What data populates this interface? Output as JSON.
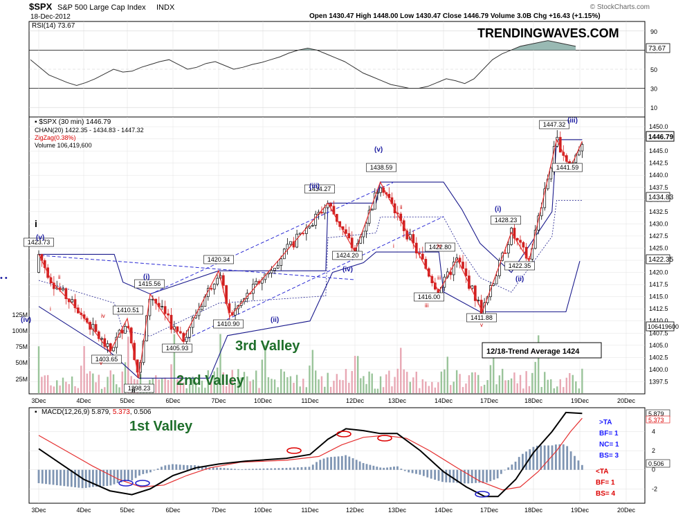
{
  "header": {
    "symbol": "$SPX",
    "name": "S&P 500 Large Cap Index",
    "exchange": "INDX",
    "date": "18-Dec-2012",
    "ohlc": "Open 1430.47   High 1448.00   Low 1430.47   Close 1446.79   Volume 3.0B   Chg +16.43 (+1.15%)",
    "copyright": "© StockCharts.com",
    "brand": "TRENDINGWAVES.COM"
  },
  "rsi": {
    "label": "RSI(14) 73.67",
    "current_value_label": "73.67",
    "ticks": [
      90,
      70,
      50,
      30,
      10
    ],
    "overbought": 70,
    "oversold": 30,
    "range": [
      0,
      100
    ],
    "values": [
      60,
      52,
      44,
      40,
      36,
      33,
      36,
      40,
      45,
      50,
      47,
      48,
      52,
      55,
      58,
      60,
      55,
      50,
      52,
      56,
      58,
      54,
      50,
      52,
      55,
      57,
      60,
      63,
      67,
      70,
      72,
      70,
      66,
      62,
      58,
      52,
      46,
      42,
      38,
      34,
      32,
      30,
      30,
      32,
      36,
      40,
      38,
      35,
      40,
      50,
      60,
      66,
      70,
      74,
      76,
      78,
      80,
      78,
      76,
      74
    ]
  },
  "price": {
    "label_main": "$SPX (30 min) 1446.79",
    "label_chan": "CHAN(20) 1422.35 - 1434.83 - 1447.32",
    "label_zigzag": "ZigZag(0.38%)",
    "label_volume": "Volume 106,419,600",
    "range": [
      1395,
      1452
    ],
    "ticks": [
      1450.0,
      1447.5,
      1445.0,
      1442.5,
      1440.0,
      1437.5,
      1435.0,
      1432.5,
      1430.0,
      1427.5,
      1425.0,
      1422.5,
      1420.0,
      1417.5,
      1415.0,
      1412.5,
      1410.0,
      1407.5,
      1405.0,
      1402.5,
      1400.0,
      1397.5
    ],
    "last_price_label": "1446.79",
    "channel_upper_label": "1434.83",
    "channel_lower_label": "1422.35",
    "volume_label": "106419600",
    "volume_ticks": [
      "125M",
      "100M",
      "75M",
      "50M",
      "25M"
    ],
    "zigzag_labels": [
      "1423.73",
      "1410.51",
      "1415.56",
      "1403.65",
      "1398.23",
      "1405.93",
      "1420.34",
      "1410.90",
      "1434.27",
      "1424.20",
      "1438.59",
      "1416.00",
      "1422.80",
      "1411.88",
      "1428.23",
      "1422.35",
      "1447.32",
      "1441.59"
    ],
    "x_labels": [
      "3Dec",
      "4Dec",
      "5Dec",
      "6Dec",
      "7Dec",
      "10Dec",
      "11Dec",
      "12Dec",
      "13Dec",
      "14Dec",
      "17Dec",
      "18Dec",
      "19Dec",
      "20Dec"
    ]
  },
  "annotations": {
    "wave_i_big": "i",
    "wave_v1": "(v)",
    "wave_i1": "(i)",
    "wave_i2": "(i)",
    "wave_iii1": "(iii)",
    "wave_iii2": "(iii)",
    "wave_v2": "(v)",
    "wave_iv1": "(iv)",
    "wave_iv2": "(iv)",
    "wave_ii1": "(ii)",
    "wave_ii2": "(ii)",
    "wave_ii_under": "ii",
    "valley3": "3rd Valley",
    "valley2": "2nd Valley",
    "valley1": "1st Valley",
    "trend_box": "12/18-Trend Average 1424",
    "small_marks": [
      "ii",
      "i",
      "iv",
      "v",
      "iii",
      "ii",
      "i",
      "iii",
      "iv",
      "v"
    ]
  },
  "macd": {
    "label_prefix": "MACD(12,26,9) ",
    "label_macd": "5.879",
    "label_sep": ", ",
    "label_signal": "5.373",
    "label_hist": ", 0.506",
    "macd_value_label": "5.879",
    "signal_value_label": "5.373",
    "hist_value_label": "0.506",
    "ticks": [
      4,
      2,
      0,
      -2
    ],
    "range": [
      -3.5,
      6.5
    ],
    "ta_up": ">TA",
    "ta_up_lines": [
      "BF= 1",
      "NC= 1",
      "BS= 3"
    ],
    "ta_down": "<TA",
    "ta_down_lines": [
      "BF= 1",
      "BS= 4"
    ],
    "x_labels": [
      "3Dec",
      "4Dec",
      "5Dec",
      "6Dec",
      "7Dec",
      "10Dec",
      "11Dec",
      "12Dec",
      "13Dec",
      "14Dec",
      "17Dec",
      "18Dec",
      "19Dec",
      "20Dec"
    ]
  },
  "chart_data": {
    "type": "line",
    "title": "$SPX (30 min) 1446.79",
    "series": [
      {
        "name": "ZigZag(0.38%)",
        "points": [
          [
            "3Dec",
            1423.73
          ],
          [
            "4Dec",
            1403.65
          ],
          [
            "5Dec",
            1410.51
          ],
          [
            "5Dec",
            1398.23
          ],
          [
            "5Dec",
            1415.56
          ],
          [
            "6Dec",
            1405.93
          ],
          [
            "7Dec",
            1420.34
          ],
          [
            "7Dec",
            1410.9
          ],
          [
            "11Dec",
            1434.27
          ],
          [
            "12Dec",
            1424.2
          ],
          [
            "12Dec",
            1438.59
          ],
          [
            "13Dec",
            1416.0
          ],
          [
            "14Dec",
            1422.8
          ],
          [
            "17Dec",
            1411.88
          ],
          [
            "17Dec",
            1428.23
          ],
          [
            "18Dec",
            1422.35
          ],
          [
            "18Dec",
            1447.32
          ],
          [
            "18Dec",
            1441.59
          ]
        ]
      }
    ],
    "ylim": [
      1395,
      1452
    ],
    "xlabel": "",
    "ylabel": ""
  }
}
